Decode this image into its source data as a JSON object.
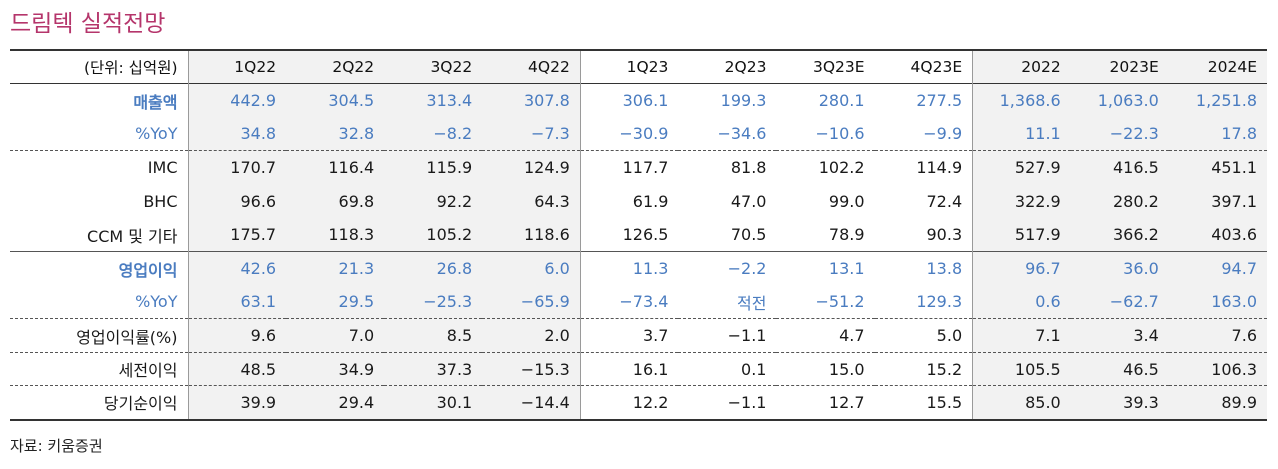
{
  "title": "드림텍 실적전망",
  "unit_label": "(단위: 십억원)",
  "columns": [
    "1Q22",
    "2Q22",
    "3Q22",
    "4Q22",
    "1Q23",
    "2Q23",
    "3Q23E",
    "4Q23E",
    "2022",
    "2023E",
    "2024E"
  ],
  "rows": {
    "revenue": {
      "label": "매출액",
      "values": [
        "442.9",
        "304.5",
        "313.4",
        "307.8",
        "306.1",
        "199.3",
        "280.1",
        "277.5",
        "1,368.6",
        "1,063.0",
        "1,251.8"
      ]
    },
    "revenue_yoy": {
      "label": "%YoY",
      "values": [
        "34.8",
        "32.8",
        "−8.2",
        "−7.3",
        "−30.9",
        "−34.6",
        "−10.6",
        "−9.9",
        "11.1",
        "−22.3",
        "17.8"
      ]
    },
    "imc": {
      "label": "IMC",
      "values": [
        "170.7",
        "116.4",
        "115.9",
        "124.9",
        "117.7",
        "81.8",
        "102.2",
        "114.9",
        "527.9",
        "416.5",
        "451.1"
      ]
    },
    "bhc": {
      "label": "BHC",
      "values": [
        "96.6",
        "69.8",
        "92.2",
        "64.3",
        "61.9",
        "47.0",
        "99.0",
        "72.4",
        "322.9",
        "280.2",
        "397.1"
      ]
    },
    "ccm": {
      "label": "CCM 및 기타",
      "values": [
        "175.7",
        "118.3",
        "105.2",
        "118.6",
        "126.5",
        "70.5",
        "78.9",
        "90.3",
        "517.9",
        "366.2",
        "403.6"
      ]
    },
    "op_profit": {
      "label": "영업이익",
      "values": [
        "42.6",
        "21.3",
        "26.8",
        "6.0",
        "11.3",
        "−2.2",
        "13.1",
        "13.8",
        "96.7",
        "36.0",
        "94.7"
      ]
    },
    "op_yoy": {
      "label": "%YoY",
      "values": [
        "63.1",
        "29.5",
        "−25.3",
        "−65.9",
        "−73.4",
        "적전",
        "−51.2",
        "129.3",
        "0.6",
        "−62.7",
        "163.0"
      ]
    },
    "op_margin": {
      "label": "영업이익률(%)",
      "values": [
        "9.6",
        "7.0",
        "8.5",
        "2.0",
        "3.7",
        "−1.1",
        "4.7",
        "5.0",
        "7.1",
        "3.4",
        "7.6"
      ]
    },
    "pretax": {
      "label": "세전이익",
      "values": [
        "48.5",
        "34.9",
        "37.3",
        "−15.3",
        "16.1",
        "0.1",
        "15.0",
        "15.2",
        "105.5",
        "46.5",
        "106.3"
      ]
    },
    "net_income": {
      "label": "당기순이익",
      "values": [
        "39.9",
        "29.4",
        "30.1",
        "−14.4",
        "12.2",
        "−1.1",
        "12.7",
        "15.5",
        "85.0",
        "39.3",
        "89.9"
      ]
    }
  },
  "source": "자료: 키움증권",
  "colors": {
    "title": "#b5356b",
    "accent_blue": "#4a7cc0",
    "shade": "#f2f2f2"
  }
}
